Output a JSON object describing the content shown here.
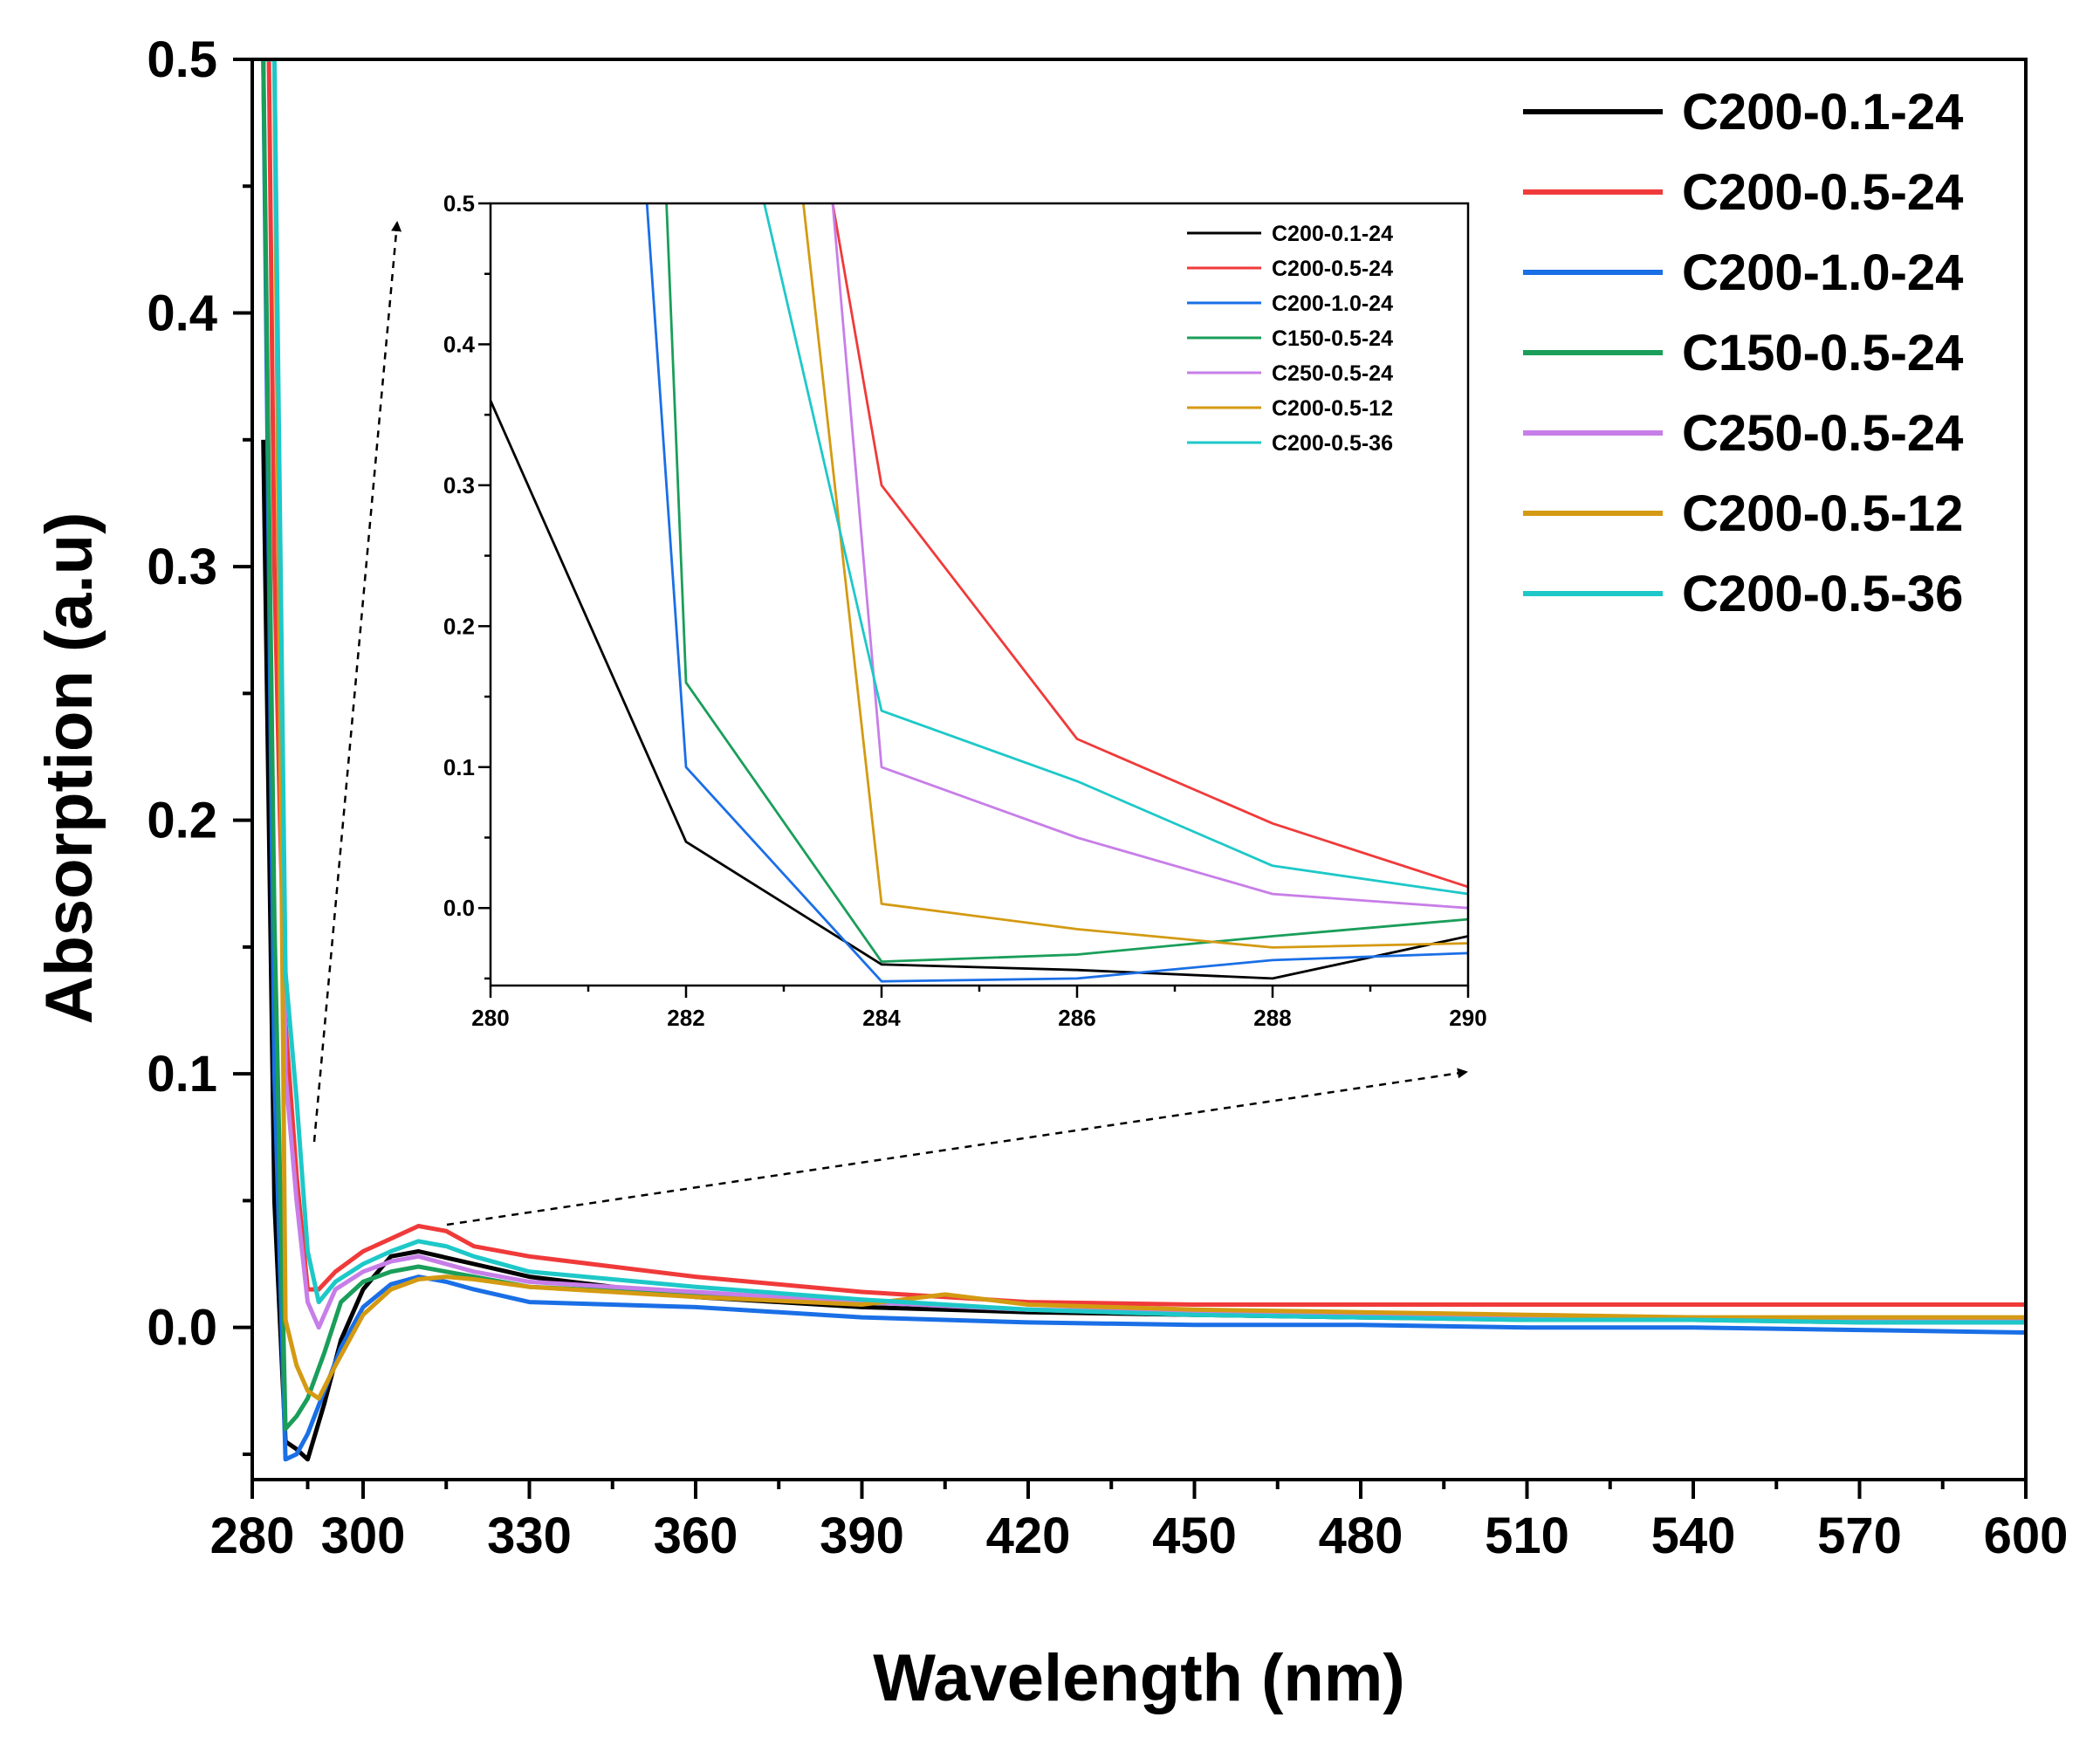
{
  "chart_data": [
    {
      "type": "line",
      "xlabel": "Wavelength (nm)",
      "ylabel": "Absorption (a.u)",
      "xlim": [
        280,
        600
      ],
      "ylim": [
        -0.06,
        0.5
      ],
      "xticks": [
        "280",
        "300",
        "330",
        "360",
        "390",
        "420",
        "450",
        "480",
        "510",
        "540",
        "570",
        "600"
      ],
      "yticks": [
        "0.0",
        "0.1",
        "0.2",
        "0.3",
        "0.4",
        "0.5"
      ],
      "legend_position": "top-right",
      "grid": false,
      "series": [
        {
          "name": "C200-0.1-24",
          "color": "#000000",
          "x": [
            282,
            284,
            286,
            288,
            290,
            293,
            296,
            300,
            305,
            310,
            320,
            330,
            360,
            390,
            420,
            450,
            480,
            510,
            540,
            570,
            600
          ],
          "y": [
            0.35,
            0.05,
            -0.045,
            -0.048,
            -0.052,
            -0.03,
            -0.005,
            0.015,
            0.028,
            0.03,
            0.025,
            0.02,
            0.012,
            0.008,
            0.006,
            0.005,
            0.004,
            0.004,
            0.003,
            0.003,
            0.003
          ]
        },
        {
          "name": "C200-0.5-24",
          "color": "#f03a3a",
          "x": [
            282,
            283,
            284,
            285,
            286,
            288,
            290,
            292,
            295,
            300,
            305,
            310,
            315,
            320,
            330,
            345,
            360,
            390,
            420,
            450,
            480,
            510,
            540,
            570,
            600
          ],
          "y": [
            0.5,
            0.5,
            0.3,
            0.2,
            0.12,
            0.06,
            0.015,
            0.015,
            0.022,
            0.03,
            0.035,
            0.04,
            0.038,
            0.032,
            0.028,
            0.024,
            0.02,
            0.014,
            0.01,
            0.009,
            0.009,
            0.009,
            0.009,
            0.009,
            0.009
          ]
        },
        {
          "name": "C200-1.0-24",
          "color": "#1a6fe6",
          "x": [
            282,
            284,
            286,
            288,
            290,
            293,
            296,
            300,
            305,
            310,
            315,
            320,
            330,
            360,
            390,
            420,
            450,
            480,
            510,
            540,
            570,
            600
          ],
          "y": [
            0.5,
            0.1,
            -0.052,
            -0.05,
            -0.042,
            -0.025,
            -0.008,
            0.008,
            0.017,
            0.02,
            0.018,
            0.015,
            0.01,
            0.008,
            0.004,
            0.002,
            0.001,
            0.001,
            0.0,
            0.0,
            -0.001,
            -0.002
          ]
        },
        {
          "name": "C150-0.5-24",
          "color": "#1a9e5a",
          "x": [
            282,
            284,
            286,
            288,
            290,
            293,
            296,
            300,
            305,
            310,
            315,
            320,
            330,
            360,
            390,
            420,
            450,
            480,
            510,
            540,
            570,
            600
          ],
          "y": [
            0.5,
            0.16,
            -0.04,
            -0.035,
            -0.028,
            -0.01,
            0.01,
            0.018,
            0.022,
            0.024,
            0.022,
            0.02,
            0.016,
            0.013,
            0.01,
            0.007,
            0.005,
            0.004,
            0.003,
            0.003,
            0.002,
            0.002
          ]
        },
        {
          "name": "C250-0.5-24",
          "color": "#c77ee8",
          "x": [
            282,
            284,
            286,
            288,
            290,
            292,
            295,
            300,
            305,
            310,
            315,
            320,
            330,
            360,
            390,
            420,
            450,
            480,
            510,
            540,
            570,
            600
          ],
          "y": [
            0.5,
            0.5,
            0.1,
            0.05,
            0.01,
            0.0,
            0.015,
            0.022,
            0.026,
            0.028,
            0.025,
            0.022,
            0.018,
            0.014,
            0.01,
            0.007,
            0.006,
            0.005,
            0.004,
            0.004,
            0.003,
            0.003
          ]
        },
        {
          "name": "C200-0.5-12",
          "color": "#d49a12",
          "x": [
            282,
            284,
            286,
            288,
            290,
            292,
            295,
            300,
            305,
            310,
            315,
            320,
            330,
            360,
            390,
            405,
            420,
            450,
            480,
            510,
            540,
            570,
            600
          ],
          "y": [
            0.5,
            0.5,
            0.003,
            -0.015,
            -0.025,
            -0.028,
            -0.015,
            0.005,
            0.015,
            0.019,
            0.02,
            0.019,
            0.016,
            0.012,
            0.009,
            0.013,
            0.009,
            0.007,
            0.006,
            0.005,
            0.004,
            0.004,
            0.004
          ]
        },
        {
          "name": "C200-0.5-36",
          "color": "#1ec8c8",
          "x": [
            282,
            284,
            286,
            288,
            290,
            292,
            295,
            300,
            305,
            310,
            315,
            320,
            330,
            360,
            390,
            420,
            450,
            480,
            510,
            540,
            570,
            600
          ],
          "y": [
            0.5,
            0.5,
            0.14,
            0.09,
            0.03,
            0.01,
            0.018,
            0.025,
            0.03,
            0.034,
            0.032,
            0.028,
            0.022,
            0.016,
            0.011,
            0.007,
            0.005,
            0.004,
            0.003,
            0.003,
            0.002,
            0.002
          ]
        }
      ]
    },
    {
      "type": "line",
      "xlim": [
        280,
        290
      ],
      "ylim": [
        -0.055,
        0.5
      ],
      "xticks": [
        "280",
        "282",
        "284",
        "286",
        "288",
        "290"
      ],
      "yticks": [
        "0.0",
        "0.1",
        "0.2",
        "0.3",
        "0.4",
        "0.5"
      ],
      "legend_position": "top-right",
      "grid": false,
      "series": [
        {
          "name": "C200-0.1-24",
          "color": "#000000",
          "x": [
            280,
            282,
            284,
            286,
            288,
            290
          ],
          "y": [
            0.36,
            0.047,
            -0.04,
            -0.044,
            -0.05,
            -0.02
          ]
        },
        {
          "name": "C200-0.5-24",
          "color": "#f03a3a",
          "x": [
            283.5,
            284,
            286,
            288,
            290
          ],
          "y": [
            0.5,
            0.3,
            0.12,
            0.06,
            0.015
          ]
        },
        {
          "name": "C200-1.0-24",
          "color": "#1a6fe6",
          "x": [
            281.6,
            282,
            284,
            286,
            288,
            290
          ],
          "y": [
            0.5,
            0.1,
            -0.052,
            -0.05,
            -0.037,
            -0.032
          ]
        },
        {
          "name": "C150-0.5-24",
          "color": "#1a9e5a",
          "x": [
            281.8,
            282,
            284,
            286,
            288,
            290
          ],
          "y": [
            0.5,
            0.16,
            -0.038,
            -0.033,
            -0.02,
            -0.008
          ]
        },
        {
          "name": "C250-0.5-24",
          "color": "#c77ee8",
          "x": [
            283.5,
            284,
            286,
            288,
            290
          ],
          "y": [
            0.5,
            0.1,
            0.05,
            0.01,
            0.0
          ]
        },
        {
          "name": "C200-0.5-12",
          "color": "#d49a12",
          "x": [
            283.2,
            284,
            286,
            288,
            290
          ],
          "y": [
            0.5,
            0.003,
            -0.015,
            -0.028,
            -0.025
          ]
        },
        {
          "name": "C200-0.5-36",
          "color": "#1ec8c8",
          "x": [
            282.8,
            284,
            286,
            288,
            290
          ],
          "y": [
            0.5,
            0.14,
            0.09,
            0.03,
            0.01
          ]
        }
      ]
    }
  ]
}
